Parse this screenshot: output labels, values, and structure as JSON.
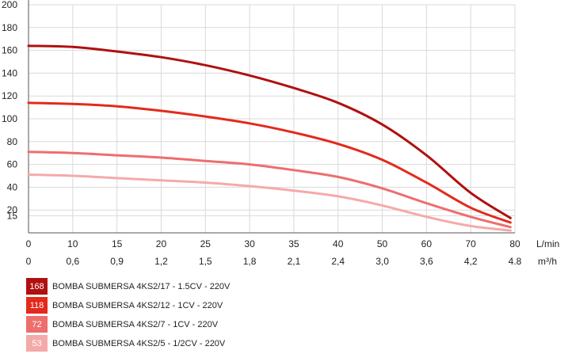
{
  "chart_data": {
    "type": "line",
    "title": "",
    "grid": true,
    "x_ticks": [
      "0",
      "10",
      "15",
      "20",
      "25",
      "30",
      "35",
      "40",
      "50",
      "60",
      "70",
      "80"
    ],
    "x_ticks_secondary": [
      "0",
      "0,6",
      "0,9",
      "1,2",
      "1,5",
      "1,8",
      "2,1",
      "2,4",
      "3,0",
      "3,6",
      "4,2",
      "4.8"
    ],
    "x_unit": "L/min",
    "x_unit_secondary": "m³/h",
    "y_ticks": [
      "15",
      "20",
      "40",
      "60",
      "80",
      "100",
      "120",
      "140",
      "160",
      "180",
      "200"
    ],
    "ylim": [
      0,
      200
    ],
    "legend_position": "bottom-left",
    "series": [
      {
        "name": "BOMBA SUBMERSA 4KS2/17 - 1.5CV - 220V",
        "badge": "168",
        "color": "#b01010",
        "points": [
          [
            0,
            164
          ],
          [
            1,
            163
          ],
          [
            2,
            159
          ],
          [
            3,
            154
          ],
          [
            4,
            147
          ],
          [
            5,
            138
          ],
          [
            6,
            127
          ],
          [
            7,
            114
          ],
          [
            8,
            95
          ],
          [
            9,
            68
          ],
          [
            10,
            35
          ],
          [
            10.9,
            13
          ]
        ]
      },
      {
        "name": "BOMBA SUBMERSA 4KS2/12 - 1CV - 220V",
        "badge": "118",
        "color": "#e32a1c",
        "points": [
          [
            0,
            114
          ],
          [
            1,
            113
          ],
          [
            2,
            111
          ],
          [
            3,
            107
          ],
          [
            4,
            102
          ],
          [
            5,
            96
          ],
          [
            6,
            88
          ],
          [
            7,
            78
          ],
          [
            8,
            64
          ],
          [
            9,
            44
          ],
          [
            10,
            22
          ],
          [
            10.9,
            9
          ]
        ]
      },
      {
        "name": "BOMBA SUBMERSA 4KS2/7 - 1CV - 220V",
        "badge": "72",
        "color": "#ee6e6e",
        "points": [
          [
            0,
            71
          ],
          [
            1,
            70
          ],
          [
            2,
            68
          ],
          [
            3,
            66
          ],
          [
            4,
            63
          ],
          [
            5,
            60
          ],
          [
            6,
            55
          ],
          [
            7,
            49
          ],
          [
            8,
            39
          ],
          [
            9,
            26
          ],
          [
            10,
            14
          ],
          [
            10.9,
            5
          ]
        ]
      },
      {
        "name": "BOMBA SUBMERSA 4KS2/5 - 1/2CV - 220V",
        "badge": "53",
        "color": "#f4aaa9",
        "points": [
          [
            0,
            51
          ],
          [
            1,
            50
          ],
          [
            2,
            48
          ],
          [
            3,
            46
          ],
          [
            4,
            44
          ],
          [
            5,
            41
          ],
          [
            6,
            37
          ],
          [
            7,
            32
          ],
          [
            8,
            24
          ],
          [
            9,
            14
          ],
          [
            10,
            6
          ],
          [
            10.9,
            2
          ]
        ]
      }
    ]
  }
}
